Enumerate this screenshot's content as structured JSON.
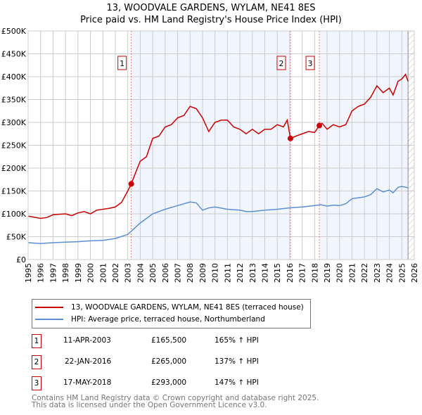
{
  "chart_data": {
    "type": "line",
    "title": "13, WOODVALE GARDENS, WYLAM, NE41 8ES",
    "subtitle": "Price paid vs. HM Land Registry's House Price Index (HPI)",
    "xlim": [
      1995,
      2026
    ],
    "ylim": [
      0,
      500000
    ],
    "x_ticks": [
      "1995",
      "1996",
      "1997",
      "1998",
      "1999",
      "2000",
      "2001",
      "2002",
      "2003",
      "2004",
      "2005",
      "2006",
      "2007",
      "2008",
      "2009",
      "2010",
      "2011",
      "2012",
      "2013",
      "2014",
      "2015",
      "2016",
      "2017",
      "2018",
      "2019",
      "2020",
      "2021",
      "2022",
      "2023",
      "2024",
      "2025",
      "2026"
    ],
    "y_ticks": [
      {
        "v": 0,
        "l": "£0"
      },
      {
        "v": 50000,
        "l": "£50K"
      },
      {
        "v": 100000,
        "l": "£100K"
      },
      {
        "v": 150000,
        "l": "£150K"
      },
      {
        "v": 200000,
        "l": "£200K"
      },
      {
        "v": 250000,
        "l": "£250K"
      },
      {
        "v": 300000,
        "l": "£300K"
      },
      {
        "v": 350000,
        "l": "£350K"
      },
      {
        "v": 400000,
        "l": "£400K"
      },
      {
        "v": 450000,
        "l": "£450K"
      },
      {
        "v": 500000,
        "l": "£500K"
      }
    ],
    "grid": true,
    "legend_placement": "below",
    "series": [
      {
        "name": "13, WOODVALE GARDENS, WYLAM, NE41 8ES (terraced house)",
        "color": "#cc0000",
        "x": [
          1995,
          1996,
          1996.5,
          1997,
          1998,
          1998.5,
          1999,
          1999.5,
          2000,
          2000.5,
          2001,
          2001.5,
          2002,
          2002.5,
          2003,
          2003.28,
          2003.7,
          2004,
          2004.5,
          2005,
          2005.5,
          2006,
          2006.5,
          2007,
          2007.5,
          2008,
          2008.5,
          2009,
          2009.5,
          2010,
          2010.5,
          2011,
          2011.5,
          2012,
          2012.5,
          2013,
          2013.5,
          2014,
          2014.5,
          2015,
          2015.5,
          2015.8,
          2016.06,
          2016.5,
          2017,
          2017.5,
          2018,
          2018.38,
          2018.6,
          2019,
          2019.5,
          2020,
          2020.5,
          2021,
          2021.5,
          2022,
          2022.5,
          2023,
          2023.5,
          2024,
          2024.3,
          2024.7,
          2025,
          2025.3,
          2025.5
        ],
        "y": [
          95000,
          90000,
          92000,
          98000,
          100000,
          96000,
          102000,
          105000,
          100000,
          108000,
          110000,
          112000,
          115000,
          125000,
          150000,
          165500,
          195000,
          215000,
          225000,
          265000,
          270000,
          290000,
          295000,
          310000,
          315000,
          335000,
          330000,
          310000,
          280000,
          300000,
          305000,
          305000,
          290000,
          285000,
          275000,
          285000,
          275000,
          285000,
          285000,
          295000,
          290000,
          305000,
          265000,
          270000,
          275000,
          280000,
          278000,
          293000,
          298000,
          285000,
          295000,
          290000,
          295000,
          325000,
          335000,
          340000,
          355000,
          380000,
          365000,
          375000,
          360000,
          390000,
          395000,
          405000,
          390000
        ]
      },
      {
        "name": "HPI: Average price, terraced house, Northumberland",
        "color": "#5b8fd4",
        "x": [
          1995,
          1996,
          1997,
          1998,
          1999,
          2000,
          2001,
          2002,
          2003,
          2003.28,
          2004,
          2005,
          2006,
          2007,
          2008,
          2008.5,
          2009,
          2009.5,
          2010,
          2011,
          2012,
          2012.5,
          2013,
          2014,
          2015,
          2016,
          2017,
          2018,
          2018.5,
          2019,
          2019.5,
          2020,
          2020.5,
          2021,
          2022,
          2022.5,
          2023,
          2023.5,
          2024,
          2024.3,
          2024.7,
          2025,
          2025.5
        ],
        "y": [
          37000,
          35000,
          37000,
          38000,
          39000,
          41000,
          42000,
          46000,
          55000,
          62000,
          80000,
          100000,
          110000,
          118000,
          126000,
          124000,
          108000,
          113000,
          115000,
          110000,
          108000,
          105000,
          105000,
          108000,
          110000,
          113000,
          115000,
          118000,
          120000,
          117000,
          119000,
          118000,
          122000,
          133000,
          137000,
          142000,
          155000,
          148000,
          152000,
          146000,
          158000,
          160000,
          157000
        ]
      }
    ],
    "sales": [
      {
        "n": "1",
        "x": 2003.28,
        "date": "11-APR-2003",
        "price": "£165,500",
        "y": 165500,
        "hpi": "165% ↑ HPI"
      },
      {
        "n": "2",
        "x": 2016.06,
        "date": "22-JAN-2016",
        "price": "£265,000",
        "y": 265000,
        "hpi": "137% ↑ HPI"
      },
      {
        "n": "3",
        "x": 2018.38,
        "date": "17-MAY-2018",
        "price": "£293,000",
        "y": 293000,
        "hpi": "147% ↑ HPI"
      }
    ],
    "shaded_ranges": [
      [
        2003.28,
        2016.06
      ],
      [
        2018.38,
        2025.5
      ]
    ],
    "forecast_start": 2025.5
  },
  "footer": {
    "line1": "Contains HM Land Registry data © Crown copyright and database right 2025.",
    "line2": "This data is licensed under the Open Government Licence v3.0."
  }
}
